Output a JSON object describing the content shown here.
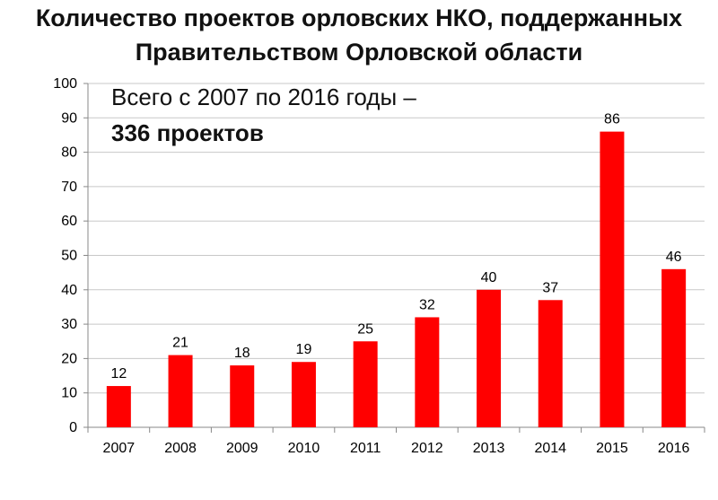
{
  "chart_data": {
    "type": "bar",
    "title": "Количество проектов орловских НКО, поддержанных Правительством Орловской области",
    "title_lines": [
      "Количество проектов орловских НКО, поддержанных",
      "Правительством Орловской области"
    ],
    "annotation": {
      "line1": "Всего с 2007 по 2016 годы –",
      "line2": "336 проектов"
    },
    "categories": [
      "2007",
      "2008",
      "2009",
      "2010",
      "2011",
      "2012",
      "2013",
      "2014",
      "2015",
      "2016"
    ],
    "values": [
      12,
      21,
      18,
      19,
      25,
      32,
      40,
      37,
      86,
      46
    ],
    "xlabel": "",
    "ylabel": "",
    "ylim": [
      0,
      100
    ],
    "yticks": [
      0,
      10,
      20,
      30,
      40,
      50,
      60,
      70,
      80,
      90,
      100
    ],
    "grid": true,
    "legend": "none",
    "data_labels": true,
    "bar_color": "#ff0000",
    "grid_color": "#c8c8c8"
  }
}
